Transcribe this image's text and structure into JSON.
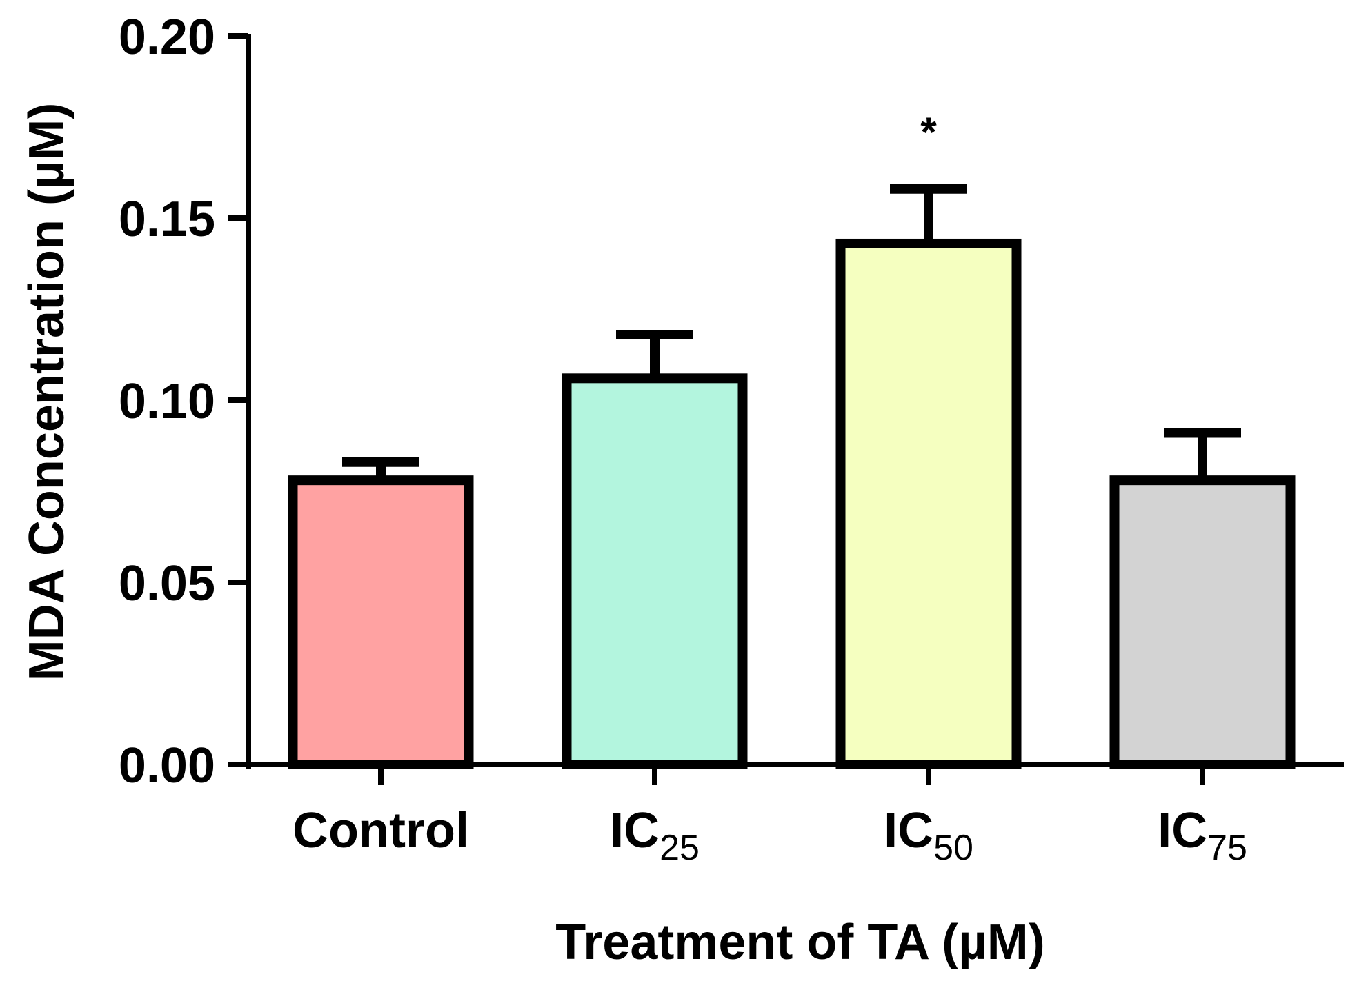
{
  "chart_data": {
    "type": "bar",
    "categories": [
      {
        "main": "Control",
        "sub": ""
      },
      {
        "main": "IC",
        "sub": "25"
      },
      {
        "main": "IC",
        "sub": "50"
      },
      {
        "main": "IC",
        "sub": "75"
      }
    ],
    "values": [
      0.078,
      0.106,
      0.143,
      0.078
    ],
    "errors": [
      0.005,
      0.012,
      0.015,
      0.013
    ],
    "colors": [
      "#FFA2A2",
      "#B3F5DE",
      "#F5FFC0",
      "#D3D3D3"
    ],
    "edge_color": "#000000",
    "annotations": [
      "",
      "",
      "*",
      ""
    ],
    "xlabel": "Treatment of TA (µM)",
    "ylabel": "MDA Concentration (µM)",
    "ylim": [
      0,
      0.2
    ],
    "yticks": [
      "0.00",
      "0.05",
      "0.10",
      "0.15",
      "0.20"
    ],
    "grid": false
  }
}
